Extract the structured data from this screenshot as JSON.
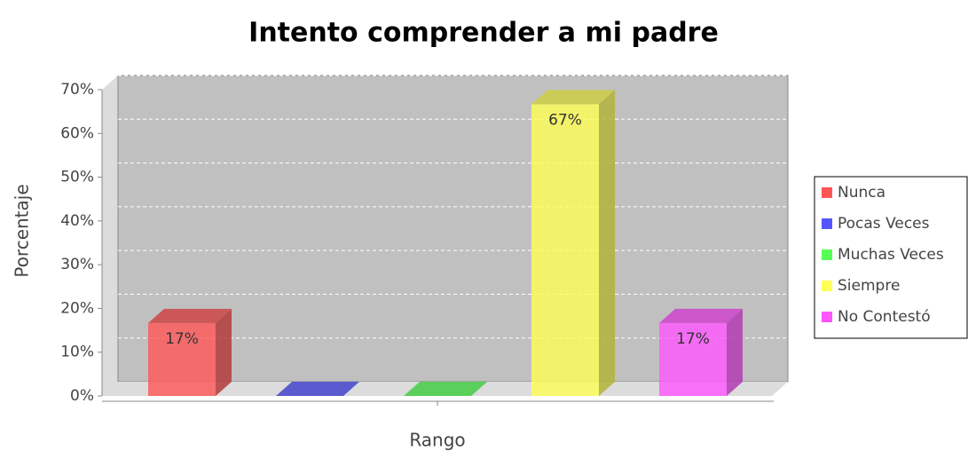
{
  "chart_data": {
    "type": "bar3d",
    "title": "Intento comprender a mi padre",
    "x_label": "Rango",
    "y_label": "Porcentaje",
    "series": [
      {
        "name": "Nunca",
        "color": "#ff5555",
        "values": [
          16.67
        ],
        "value_labels": [
          "17%"
        ]
      },
      {
        "name": "Pocas Veces",
        "color": "#5555ff",
        "values": [
          0
        ]
      },
      {
        "name": "Muchas Veces",
        "color": "#55ff55",
        "values": [
          0
        ]
      },
      {
        "name": "Siempre",
        "color": "#ffff55",
        "values": [
          66.67
        ],
        "value_labels": [
          "67%"
        ]
      },
      {
        "name": "No Contestó",
        "color": "#ff55ff",
        "values": [
          16.67
        ],
        "value_labels": [
          "17%"
        ]
      }
    ],
    "ylim": [
      0,
      70
    ],
    "yticks": [
      {
        "value": 0,
        "label": "0%"
      },
      {
        "value": 10,
        "label": "10%"
      },
      {
        "value": 20,
        "label": "20%"
      },
      {
        "value": 30,
        "label": "30%"
      },
      {
        "value": 40,
        "label": "40%"
      },
      {
        "value": 50,
        "label": "50%"
      },
      {
        "value": 60,
        "label": "60%"
      },
      {
        "value": 70,
        "label": "70%"
      }
    ],
    "grid": true,
    "legend": "right"
  }
}
